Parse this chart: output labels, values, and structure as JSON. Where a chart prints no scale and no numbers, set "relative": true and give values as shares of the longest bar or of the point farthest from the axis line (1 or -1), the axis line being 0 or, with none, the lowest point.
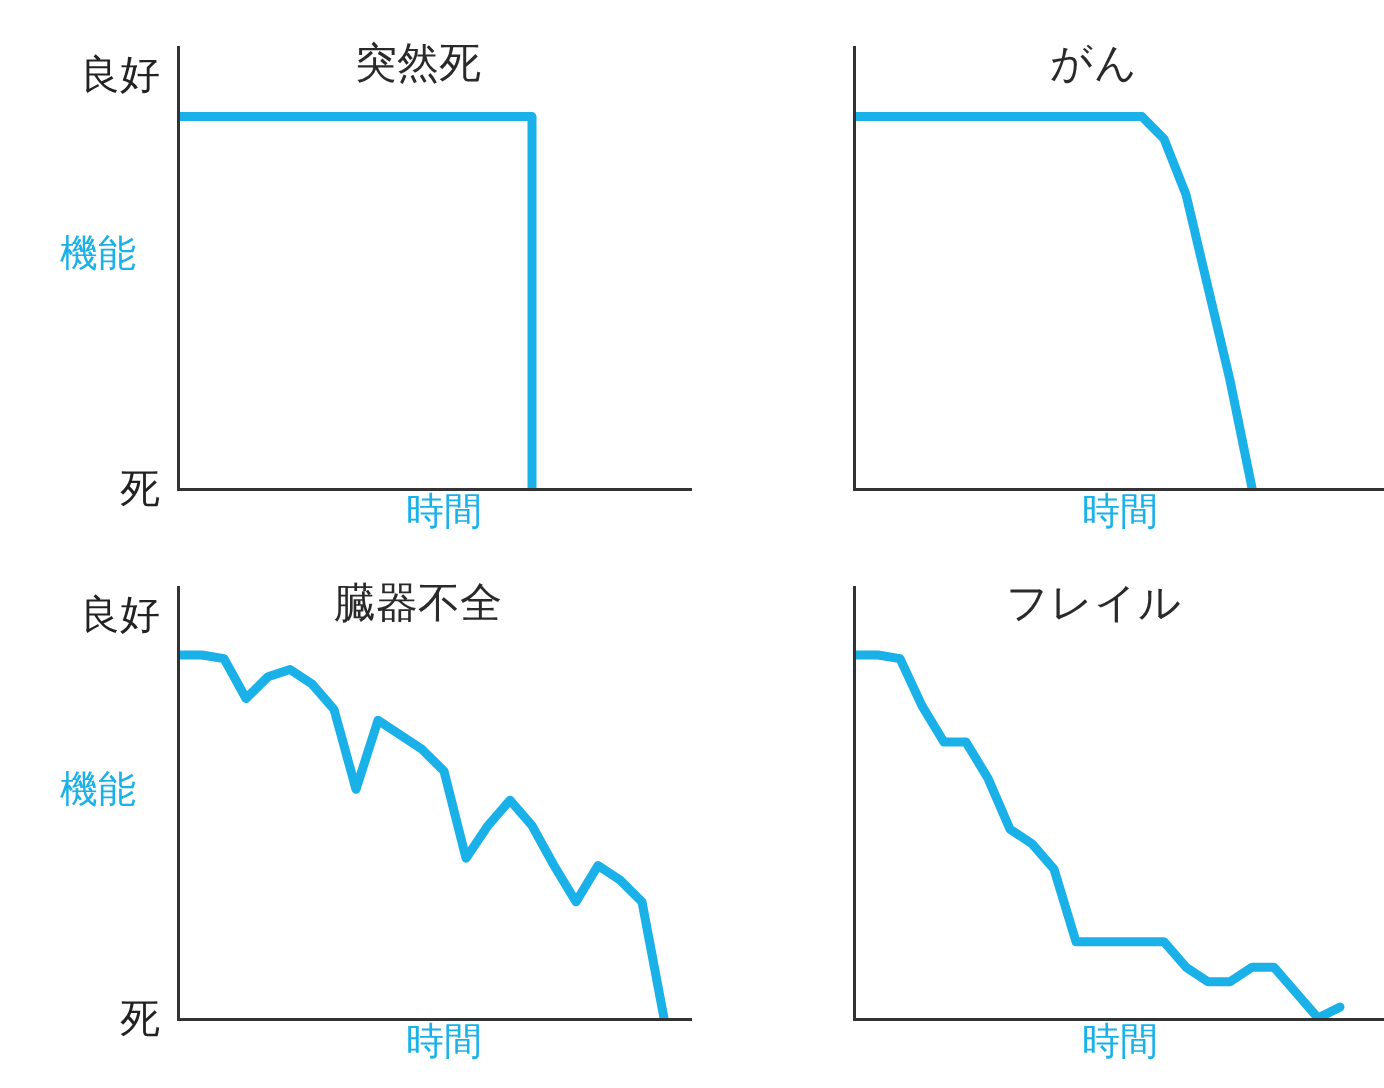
{
  "chart_data": [
    {
      "type": "step",
      "title": "突然死",
      "xlabel": "時間",
      "ylabel": "機能",
      "annotations": [
        "良好",
        "死"
      ],
      "relative": true,
      "categories": [
        null,
        null,
        null,
        null,
        null,
        null,
        null,
        null,
        null,
        null,
        null,
        null,
        null,
        null,
        null,
        null,
        null,
        null,
        null,
        null,
        null,
        null,
        null,
        null,
        null
      ],
      "series": [
        {
          "color": "#1ab0e8",
          "values": [
            1,
            1,
            1,
            1,
            1,
            1,
            1,
            1,
            1,
            1,
            1,
            1,
            1,
            1,
            1,
            1,
            0,
            null,
            null,
            null,
            null,
            null,
            null,
            null,
            null
          ]
        }
      ]
    },
    {
      "type": "line",
      "title": "がん",
      "xlabel": "時間",
      "relative": true,
      "categories": [
        null,
        null,
        null,
        null,
        null,
        null,
        null,
        null,
        null,
        null,
        null,
        null,
        null,
        null,
        null,
        null,
        null,
        null,
        null,
        null,
        null,
        null,
        null,
        null,
        null
      ],
      "series": [
        {
          "color": "#1ab0e8",
          "values": [
            1,
            1,
            1,
            1,
            1,
            1,
            1,
            1,
            1,
            1,
            1,
            1,
            1,
            1,
            0.94,
            0.79,
            0.54,
            0.29,
            0,
            null,
            null,
            null,
            null,
            null,
            null
          ]
        }
      ]
    },
    {
      "type": "line",
      "title": "臓器不全",
      "xlabel": "時間",
      "ylabel": "機能",
      "annotations": [
        "良好",
        "死"
      ],
      "relative": true,
      "categories": [
        null,
        null,
        null,
        null,
        null,
        null,
        null,
        null,
        null,
        null,
        null,
        null,
        null,
        null,
        null,
        null,
        null,
        null,
        null,
        null,
        null,
        null,
        null,
        null,
        null
      ],
      "series": [
        {
          "color": "#1ab0e8",
          "values": [
            1,
            1,
            0.99,
            0.88,
            0.94,
            0.96,
            0.92,
            0.85,
            0.63,
            0.82,
            0.78,
            0.74,
            0.68,
            0.44,
            0.53,
            0.6,
            0.53,
            0.42,
            0.32,
            0.42,
            0.38,
            0.32,
            0,
            null,
            null
          ]
        }
      ]
    },
    {
      "type": "line",
      "title": "フレイル",
      "xlabel": "時間",
      "relative": true,
      "categories": [
        null,
        null,
        null,
        null,
        null,
        null,
        null,
        null,
        null,
        null,
        null,
        null,
        null,
        null,
        null,
        null,
        null,
        null,
        null,
        null,
        null,
        null,
        null,
        null,
        null
      ],
      "series": [
        {
          "color": "#1ab0e8",
          "values": [
            1,
            1,
            0.99,
            0.86,
            0.76,
            0.76,
            0.66,
            0.52,
            0.48,
            0.41,
            0.21,
            0.21,
            0.21,
            0.21,
            0.21,
            0.14,
            0.1,
            0.1,
            0.14,
            0.14,
            0.07,
            0,
            0.03,
            null,
            null
          ]
        }
      ]
    }
  ]
}
